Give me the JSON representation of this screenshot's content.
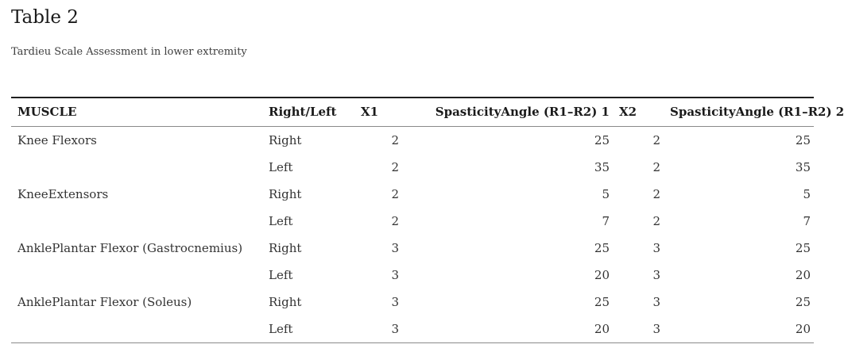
{
  "page": {
    "title": "Table 2",
    "subtitle": "Tardieu Scale Assessment in lower extremity"
  },
  "table": {
    "columns": [
      {
        "label": "MUSCLE",
        "key": "muscle",
        "header_align": "left",
        "cell_align": "left"
      },
      {
        "label": "Right/Left",
        "key": "right-left",
        "header_align": "left",
        "cell_align": "left"
      },
      {
        "label": "X1",
        "key": "x1",
        "header_align": "left",
        "cell_align": "right"
      },
      {
        "label": "SpasticityAngle (R1–R2) 1",
        "key": "spasticity-angle-1",
        "header_align": "right",
        "cell_align": "right"
      },
      {
        "label": "X2",
        "key": "x2",
        "header_align": "left",
        "cell_align": "right"
      },
      {
        "label": "SpasticityAngle (R1–R2) 2",
        "key": "spasticity-angle-2",
        "header_align": "right",
        "cell_align": "right"
      }
    ],
    "rows": [
      [
        "Knee Flexors",
        "Right",
        "2",
        "25",
        "2",
        "25"
      ],
      [
        "",
        "Left",
        "2",
        "35",
        "2",
        "35"
      ],
      [
        "KneeExtensors",
        "Right",
        "2",
        "5",
        "2",
        "5"
      ],
      [
        "",
        "Left",
        "2",
        "7",
        "2",
        "7"
      ],
      [
        "AnklePlantar Flexor (Gastrocnemius)",
        "Right",
        "3",
        "25",
        "3",
        "25"
      ],
      [
        "",
        "Left",
        "3",
        "20",
        "3",
        "20"
      ],
      [
        "AnklePlantar Flexor (Soleus)",
        "Right",
        "3",
        "25",
        "3",
        "25"
      ],
      [
        "",
        "Left",
        "3",
        "20",
        "3",
        "20"
      ]
    ],
    "colors": {
      "top_border": "#1f1f1f",
      "rule": "#8a8a8a",
      "header_text": "#1a1a1a",
      "body_text": "#333333"
    }
  }
}
